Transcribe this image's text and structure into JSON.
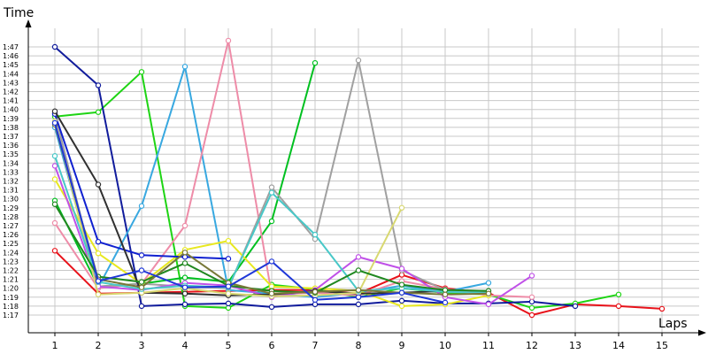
{
  "chart_data": {
    "type": "line",
    "xlabel": "Laps",
    "ylabel": "Time",
    "x": [
      1,
      2,
      3,
      4,
      5,
      6,
      7,
      8,
      9,
      10,
      11,
      12,
      13,
      14,
      15
    ],
    "xlim": [
      0,
      15.3
    ],
    "ylim_seconds": [
      76,
      114
    ],
    "grid": true,
    "y_ticks": [
      "1:17",
      "1:18",
      "1:19",
      "1:20",
      "1:21",
      "1:22",
      "1:23",
      "1:24",
      "1:25",
      "1:26",
      "1:27",
      "1:28",
      "1:29",
      "1:30",
      "1:31",
      "1:32",
      "1:33",
      "1:34",
      "1:35",
      "1:36",
      "1:37",
      "1:38",
      "1:39",
      "1:40",
      "1:41",
      "1:42",
      "1:43",
      "1:44",
      "1:45",
      "1:46",
      "1:47"
    ],
    "series": [
      {
        "color": "#e8121a",
        "values": [
          "1:24.2",
          "1:19.4",
          "1:19.5",
          "1:19.6",
          "1:19.7",
          "1:19.8",
          "1:19.8",
          "1:19.4",
          "1:21.5",
          "1:20.0",
          "1:19.5",
          "1:17.0",
          "1:18.2",
          "1:18.0",
          "1:17.7"
        ]
      },
      {
        "color": "#1ed414",
        "values": [
          "1:39.2",
          "1:39.7",
          "1:44.2",
          "1:18.0",
          "1:17.8",
          "1:20.4",
          "1:19.9",
          "1:19.0",
          "1:20.0",
          "1:19.5",
          "1:19.3",
          "1:17.8",
          "1:18.3",
          "1:19.3",
          null
        ]
      },
      {
        "color": "#111c9c",
        "values": [
          "1:47.0",
          "1:42.7",
          "1:18.0",
          "1:18.2",
          "1:18.3",
          "1:17.9",
          "1:18.2",
          "1:18.2",
          "1:18.6",
          "1:18.3",
          "1:18.3",
          "1:18.5",
          "1:18.0",
          null,
          null
        ]
      },
      {
        "color": "#00c020",
        "values": [
          "1:29.8",
          "1:20.2",
          "1:20.5",
          "1:21.2",
          "1:20.7",
          "1:27.5",
          "1:45.2",
          null,
          null,
          null,
          null,
          null,
          null,
          null,
          null
        ]
      },
      {
        "color": "#38a8e0",
        "values": [
          "1:38.0",
          "1:20.1",
          "1:29.2",
          "1:44.8",
          "1:19.8",
          "1:19.4",
          "1:19.0",
          "1:19.5",
          "1:20.3",
          "1:19.6",
          "1:20.6",
          null,
          null,
          null,
          null
        ]
      },
      {
        "color": "#ee8ca8",
        "values": [
          "1:27.3",
          "1:20.0",
          "1:20.5",
          "1:27.0",
          "1:47.7",
          "1:19.3",
          "1:19.5",
          "1:19.2",
          "1:20.8",
          "1:19.9",
          "1:19.2",
          "1:19.0",
          null,
          null,
          null
        ]
      },
      {
        "color": "#a0a0a0",
        "values": [
          "1:39.6",
          "1:20.2",
          "1:20.5",
          "1:20.2",
          "1:20.0",
          "1:31.3",
          "1:25.5",
          "1:45.5",
          "1:22.0",
          "1:19.8",
          "1:19.7",
          null,
          null,
          null,
          null
        ]
      },
      {
        "color": "#e8e820",
        "values": [
          "1:32.2",
          "1:23.9",
          "1:20.5",
          "1:24.3",
          "1:25.3",
          "1:20.2",
          "1:20.0",
          "1:19.7",
          "1:18.0",
          "1:18.2",
          "1:19.2",
          null,
          null,
          null,
          null
        ]
      },
      {
        "color": "#c050e8",
        "values": [
          "1:33.7",
          "1:20.2",
          "1:19.8",
          "1:20.6",
          "1:20.3",
          "1:19.0",
          "1:19.8",
          "1:23.5",
          "1:22.2",
          "1:19.0",
          "1:18.2",
          "1:21.4",
          null,
          null,
          null
        ]
      },
      {
        "color": "#1020d0",
        "values": [
          "1:39.5",
          "1:25.2",
          "1:23.7",
          "1:23.5",
          "1:23.3",
          null,
          null,
          null,
          null,
          null,
          null,
          null,
          null,
          null,
          null
        ]
      },
      {
        "color": "#303030",
        "values": [
          "1:39.8",
          "1:31.6",
          "1:19.5",
          "1:19.4",
          "1:19.2",
          "1:19.3",
          "1:19.7",
          "1:19.4",
          "1:19.5",
          "1:19.7",
          null,
          null,
          null,
          null,
          null
        ]
      },
      {
        "color": "#d8d870",
        "values": [
          "1:38.7",
          "1:19.3",
          "1:19.5",
          "1:20.0",
          "1:19.4",
          "1:19.1",
          "1:19.2",
          "1:19.5",
          "1:29.0",
          null,
          null,
          null,
          null,
          null,
          null
        ]
      },
      {
        "color": "#48c8c8",
        "values": [
          "1:34.8",
          "1:20.7",
          "1:19.9",
          "1:20.3",
          "1:20.1",
          "1:30.7",
          "1:26.0",
          "1:19.7",
          "1:20.0",
          "1:19.6",
          "1:19.5",
          null,
          null,
          null,
          null
        ]
      },
      {
        "color": "#208820",
        "values": [
          "1:29.4",
          "1:21.3",
          "1:20.7",
          "1:22.8",
          "1:20.3",
          "1:19.7",
          "1:19.5",
          "1:22.0",
          "1:20.4",
          "1:19.8",
          "1:19.7",
          null,
          null,
          null,
          null
        ]
      },
      {
        "color": "#787838",
        "values": [
          "1:38.3",
          "1:21.0",
          "1:20.1",
          "1:24.0",
          "1:20.6",
          "1:19.4",
          "1:19.6",
          "1:19.8",
          "1:19.5",
          "1:19.3",
          "1:19.4",
          null,
          null,
          null,
          null
        ]
      },
      {
        "color": "#2038d8",
        "values": [
          "1:38.5",
          "1:20.8",
          "1:22.0",
          "1:20.1",
          "1:20.2",
          "1:23.0",
          "1:18.7",
          "1:19.0",
          "1:19.5",
          "1:18.4",
          null,
          null,
          null,
          null,
          null
        ]
      }
    ]
  }
}
